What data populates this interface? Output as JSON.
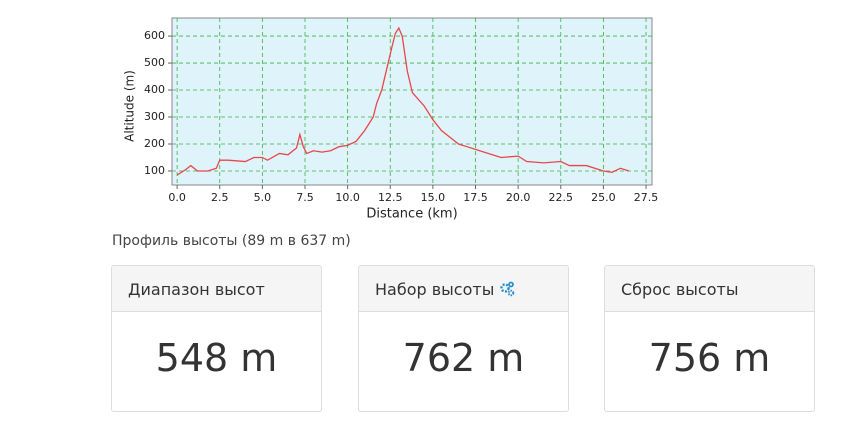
{
  "chart_data": {
    "type": "line",
    "x_label": "Distance (km)",
    "y_label": "Altitude (m)",
    "x": [
      0,
      0.5,
      0.8,
      1.2,
      1.8,
      2.3,
      2.5,
      3,
      4,
      4.5,
      5,
      5.3,
      6,
      6.5,
      7,
      7.2,
      7.4,
      7.6,
      8,
      8.5,
      9,
      9.5,
      10,
      10.5,
      11,
      11.5,
      11.7,
      12,
      12.3,
      12.6,
      12.8,
      13,
      13.2,
      13.5,
      13.8,
      14.5,
      15,
      15.5,
      16,
      16.5,
      17,
      18,
      19,
      20,
      20.5,
      21.5,
      22.5,
      23,
      24,
      25,
      25.5,
      26,
      26.5
    ],
    "values": [
      85,
      105,
      120,
      100,
      100,
      110,
      140,
      140,
      135,
      150,
      150,
      140,
      165,
      160,
      185,
      235,
      190,
      165,
      175,
      170,
      175,
      190,
      195,
      210,
      250,
      300,
      350,
      400,
      480,
      560,
      610,
      630,
      600,
      470,
      390,
      340,
      290,
      250,
      225,
      200,
      190,
      170,
      150,
      155,
      135,
      130,
      135,
      120,
      120,
      100,
      95,
      110,
      100
    ],
    "color": "#e8474a",
    "xlim": [
      -0.3,
      27.85
    ],
    "ylim": [
      48,
      667
    ],
    "xticks": [
      {
        "value": 0,
        "label": "0.0"
      },
      2.5,
      {
        "value": 5,
        "label": "5.0"
      },
      7.5,
      {
        "value": 10,
        "label": "10.0"
      },
      12.5,
      {
        "value": 15,
        "label": "15.0"
      },
      17.5,
      {
        "value": 20,
        "label": "20.0"
      },
      22.5,
      {
        "value": 25,
        "label": "25.0"
      },
      27.5
    ],
    "yticks": [
      100,
      200,
      300,
      400,
      500,
      600
    ],
    "grid": true
  },
  "caption": "Профиль высоты (89 m в 637 m)",
  "cards": [
    {
      "title": "Диапазон высот",
      "value": "548 m"
    },
    {
      "title": "Набор высоты",
      "value": "762 m"
    },
    {
      "title": "Сброс высоты",
      "value": "756 m"
    }
  ]
}
